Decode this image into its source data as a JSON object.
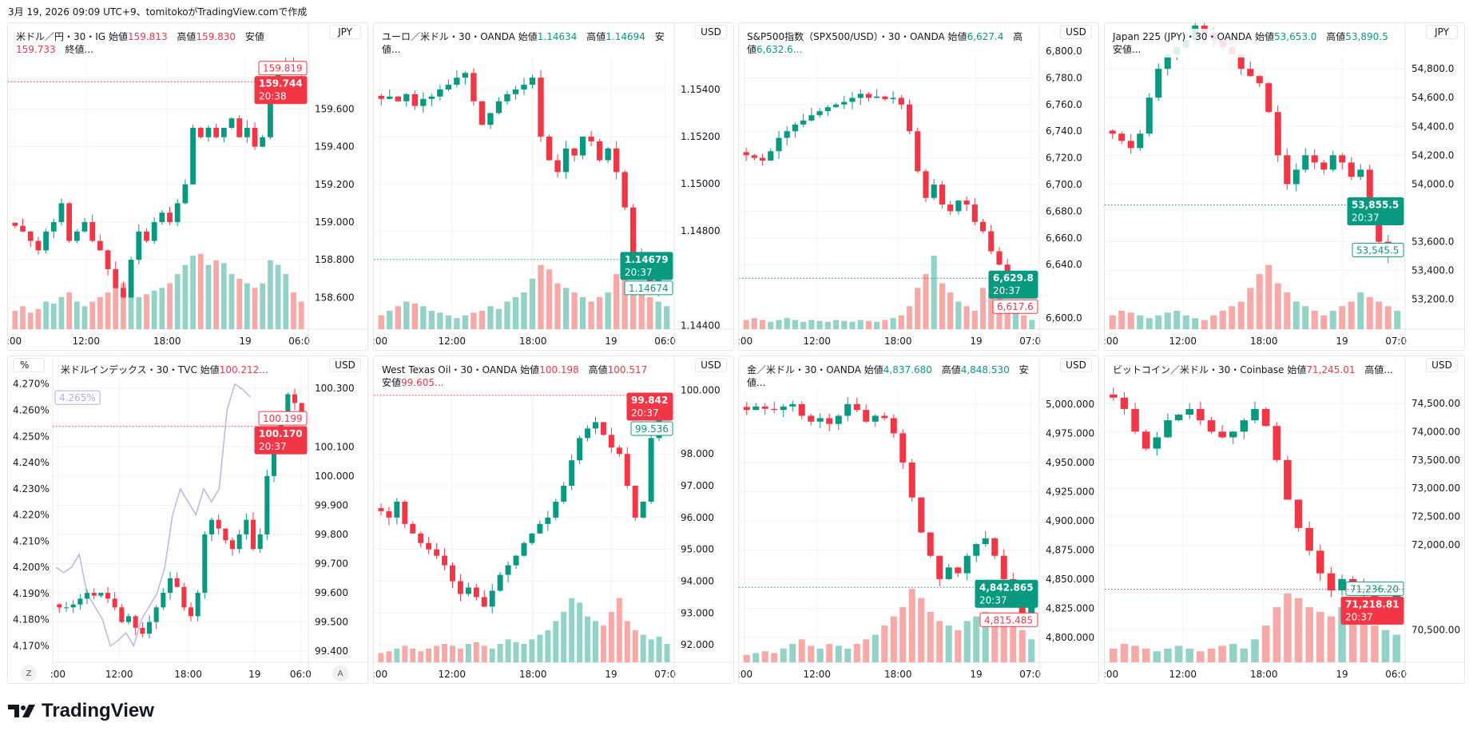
{
  "caption": "3月 19, 2026 09:09 UTC+9、tomitokoがTradingView.comで作成",
  "logo_text": "TradingView",
  "colors": {
    "up": "#089981",
    "down": "#f23645",
    "vol_up": "#92d2c7",
    "vol_down": "#f7a9a7",
    "yield_line": "#c5b6e6",
    "grid": "#f2f2f2"
  },
  "charts": [
    {
      "id": "usdjpy",
      "header": {
        "title": "米ドル／円・30・IG",
        "value_color": "#f23645",
        "fields": [
          {
            "k": "始値",
            "v": "159.813"
          },
          {
            "k": "高値",
            "v": "159.830"
          },
          {
            "k": "安値",
            "v": "159.733"
          },
          {
            "k": "終値...",
            "v": ""
          }
        ]
      },
      "currency": "JPY",
      "ylim": [
        158.432,
        160.055
      ],
      "decimals": 3,
      "yticks": [
        "159.600",
        "159.400",
        "159.200",
        "159.000",
        "158.800",
        "158.600"
      ],
      "xticks": [
        ":00",
        "12:00",
        "18:00",
        "19",
        "06:0"
      ],
      "closes": [
        158.98,
        158.95,
        158.9,
        158.85,
        158.95,
        159.0,
        159.1,
        158.9,
        158.95,
        159.0,
        158.9,
        158.85,
        158.75,
        158.65,
        158.6,
        158.8,
        158.95,
        158.9,
        159.0,
        159.05,
        159.0,
        159.1,
        159.2,
        159.5,
        159.45,
        159.5,
        159.45,
        159.5,
        159.55,
        159.45,
        159.5,
        159.4,
        159.45,
        159.7,
        159.8,
        159.85,
        159.8,
        159.78
      ],
      "volumes": [
        20,
        25,
        18,
        22,
        30,
        28,
        35,
        40,
        30,
        25,
        30,
        35,
        40,
        45,
        50,
        40,
        35,
        38,
        42,
        45,
        50,
        60,
        70,
        80,
        82,
        70,
        75,
        72,
        60,
        55,
        50,
        45,
        50,
        75,
        70,
        60,
        40,
        30
      ],
      "labels": [
        {
          "value": "159.819",
          "style": "outline",
          "color": "#f23645"
        },
        {
          "value": "159.744",
          "time": "20:38",
          "style": "filled",
          "color": "#f23645",
          "line": true
        }
      ]
    },
    {
      "id": "eurusd",
      "header": {
        "title": "ユーロ／米ドル・30・OANDA",
        "value_color": "#089981",
        "fields": [
          {
            "k": "始値",
            "v": "1.14634"
          },
          {
            "k": "高値",
            "v": "1.14694"
          },
          {
            "k": "安値...",
            "v": ""
          }
        ]
      },
      "currency": "USD",
      "ylim": [
        1.14384,
        1.15681
      ],
      "decimals": 5,
      "yticks": [
        "1.15400",
        "1.15200",
        "1.15000",
        "1.14800",
        "1.14400"
      ],
      "xticks": [
        ":00",
        "12:00",
        "18:00",
        "19",
        "06:0"
      ],
      "closes": [
        1.1536,
        1.1537,
        1.1535,
        1.1538,
        1.1533,
        1.1536,
        1.1537,
        1.154,
        1.1542,
        1.1545,
        1.1547,
        1.1535,
        1.1525,
        1.153,
        1.1535,
        1.1538,
        1.154,
        1.1542,
        1.1545,
        1.152,
        1.151,
        1.1505,
        1.1515,
        1.1512,
        1.152,
        1.1518,
        1.151,
        1.1515,
        1.1505,
        1.149,
        1.147,
        1.1465,
        1.1455,
        1.146,
        1.1468
      ],
      "volumes": [
        15,
        20,
        25,
        30,
        28,
        25,
        20,
        18,
        15,
        12,
        15,
        18,
        20,
        25,
        22,
        30,
        35,
        40,
        55,
        70,
        65,
        50,
        45,
        40,
        35,
        30,
        35,
        40,
        60,
        70,
        50,
        40,
        35,
        30,
        25
      ],
      "labels": [
        {
          "value": "1.14679",
          "time": "20:37",
          "style": "filled",
          "color": "#089981",
          "line": true
        },
        {
          "value": "1.14674",
          "style": "outline",
          "color": "#089981"
        }
      ]
    },
    {
      "id": "spx",
      "header": {
        "title": "S&P500指数（SPX500/USD）・30・OANDA",
        "value_color": "#089981",
        "fields": [
          {
            "k": "始値",
            "v": "6,627.4"
          },
          {
            "k": "高値",
            "v": "6,632.6..."
          }
        ]
      },
      "currency": "USD",
      "ylim": [
        6591.6,
        6821
      ],
      "decimals": 1,
      "yticks": [
        "6,800.0",
        "6,780.0",
        "6,760.0",
        "6,740.0",
        "6,720.0",
        "6,700.0",
        "6,680.0",
        "6,660.0",
        "6,640.0",
        "6,600.0"
      ],
      "xticks": [
        ":00",
        "12:00",
        "18:00",
        "19",
        "07:0"
      ],
      "closes": [
        6722,
        6720,
        6718,
        6725,
        6735,
        6740,
        6745,
        6748,
        6752,
        6755,
        6758,
        6760,
        6762,
        6765,
        6768,
        6765,
        6766,
        6764,
        6765,
        6760,
        6740,
        6710,
        6690,
        6700,
        6685,
        6680,
        6688,
        6685,
        6672,
        6665,
        6650,
        6640,
        6625,
        6630,
        6620,
        6627
      ],
      "volumes": [
        10,
        12,
        10,
        8,
        10,
        12,
        10,
        8,
        10,
        9,
        8,
        10,
        9,
        8,
        10,
        9,
        8,
        10,
        12,
        15,
        25,
        45,
        60,
        80,
        50,
        40,
        30,
        25,
        20,
        45,
        40,
        35,
        30,
        20,
        15,
        10
      ],
      "labels": [
        {
          "value": "6,629.8",
          "time": "20:37",
          "style": "filled",
          "color": "#089981",
          "line": true
        },
        {
          "value": "6,617.6",
          "style": "outline",
          "color": "#f23645"
        }
      ]
    },
    {
      "id": "jp225",
      "header": {
        "title": "Japan 225 (JPY)・30・OANDA",
        "value_color": "#089981",
        "fields": [
          {
            "k": "始値",
            "v": "53,653.0"
          },
          {
            "k": "高値",
            "v": "53,890.5"
          },
          {
            "k": "安値...",
            "v": ""
          }
        ]
      },
      "currency": "JPY",
      "ylim": [
        52993,
        55117
      ],
      "decimals": 1,
      "yticks": [
        "54,800.0",
        "54,600.0",
        "54,400.0",
        "54,200.0",
        "54,000.0",
        "53,600.0",
        "53,400.0",
        "53,200.0"
      ],
      "xticks": [
        ":00",
        "12:00",
        "18:00",
        "19",
        "07:0"
      ],
      "closes": [
        54350,
        54300,
        54250,
        54350,
        54600,
        54800,
        54900,
        54950,
        55000,
        55100,
        55050,
        55000,
        54950,
        54900,
        54800,
        54750,
        54700,
        54500,
        54200,
        54000,
        54100,
        54200,
        54150,
        54100,
        54200,
        54150,
        54050,
        54100,
        53800,
        53600,
        53500,
        53550
      ],
      "volumes": [
        15,
        20,
        18,
        15,
        12,
        15,
        18,
        20,
        15,
        12,
        10,
        15,
        20,
        25,
        30,
        45,
        60,
        70,
        50,
        40,
        30,
        25,
        20,
        15,
        20,
        25,
        30,
        40,
        35,
        30,
        25,
        20
      ],
      "labels": [
        {
          "value": "53,855.5",
          "time": "20:37",
          "style": "filled",
          "color": "#089981",
          "line": true
        },
        {
          "value": "53,545.5",
          "style": "outline",
          "color": "#089981"
        }
      ]
    },
    {
      "id": "dxy",
      "header": {
        "title": "米ドルインデックス・30・TVC",
        "value_color": "#f23645",
        "fields": [
          {
            "k": "始値",
            "v": "100.212..."
          }
        ]
      },
      "currency": "USD",
      "left_currency": "%",
      "ylim": [
        99.362,
        100.41
      ],
      "decimals": 3,
      "yticks": [
        "100.300",
        "100.100",
        "100.000",
        "99.900",
        "99.800",
        "99.700",
        "99.600",
        "99.500",
        "99.400"
      ],
      "left_ylim": [
        4.1637,
        4.2806
      ],
      "left_yticks": [
        "4.270%",
        "4.260%",
        "4.250%",
        "4.240%",
        "4.230%",
        "4.220%",
        "4.210%",
        "4.200%",
        "4.190%",
        "4.180%",
        "4.170%"
      ],
      "xticks": [
        ":00",
        "12:00",
        "18:00",
        "19",
        "06:0"
      ],
      "buttons": {
        "left": "Z",
        "right": "A"
      },
      "closes": [
        99.55,
        99.55,
        99.56,
        99.58,
        99.6,
        99.59,
        99.6,
        99.58,
        99.55,
        99.5,
        99.52,
        99.48,
        99.46,
        99.5,
        99.55,
        99.6,
        99.65,
        99.62,
        99.55,
        99.52,
        99.6,
        99.8,
        99.85,
        99.82,
        99.78,
        99.75,
        99.8,
        99.85,
        99.75,
        99.8,
        100.0,
        100.1,
        100.2,
        100.28,
        100.25,
        100.2
      ],
      "yield_line": [
        4.2,
        4.198,
        4.2,
        4.205,
        4.19,
        4.185,
        4.18,
        4.17,
        4.172,
        4.175,
        4.17,
        4.18,
        4.185,
        4.19,
        4.2,
        4.22,
        4.23,
        4.225,
        4.22,
        4.23,
        4.225,
        4.23,
        4.26,
        4.27,
        4.268,
        4.265
      ],
      "labels": [
        {
          "value": "100.199",
          "style": "outline",
          "color": "#f23645"
        },
        {
          "value": "100.170",
          "time": "20:37",
          "style": "filled",
          "color": "#f23645",
          "line": true
        }
      ],
      "left_labels": [
        {
          "value": "4.265%",
          "style": "outline",
          "color": "#b9a6e0"
        }
      ]
    },
    {
      "id": "wti",
      "header": {
        "title": "West Texas Oil・30・OANDA",
        "value_color": "#f23645",
        "fields": [
          {
            "k": "始値",
            "v": "100.198"
          },
          {
            "k": "高値",
            "v": "100.517"
          },
          {
            "k": "安値",
            "v": "99.605..."
          }
        ]
      },
      "currency": "USD",
      "ylim": [
        91.45,
        101.07
      ],
      "decimals": 3,
      "yticks": [
        "100.000",
        "98.000",
        "97.000",
        "96.000",
        "95.000",
        "94.000",
        "93.000",
        "92.000"
      ],
      "xticks": [
        ":00",
        "12:00",
        "18:00",
        "19",
        "07:0"
      ],
      "closes": [
        96.2,
        96.0,
        96.5,
        95.8,
        95.5,
        95.2,
        95.0,
        94.8,
        94.5,
        94.0,
        93.6,
        93.8,
        93.5,
        93.2,
        93.7,
        94.2,
        94.5,
        94.8,
        95.2,
        95.5,
        95.8,
        96.0,
        96.5,
        97.0,
        97.8,
        98.5,
        98.8,
        99.0,
        98.6,
        98.2,
        98.0,
        97.0,
        96.0,
        96.5,
        98.5,
        99.5,
        99.84
      ],
      "volumes": [
        10,
        12,
        15,
        18,
        15,
        12,
        15,
        18,
        20,
        18,
        15,
        20,
        22,
        18,
        15,
        20,
        25,
        22,
        20,
        25,
        30,
        35,
        45,
        55,
        70,
        65,
        50,
        45,
        40,
        55,
        70,
        45,
        35,
        30,
        25,
        28,
        20
      ],
      "labels": [
        {
          "value": "99.842",
          "time": "20:37",
          "style": "filled",
          "color": "#f23645",
          "line": true
        },
        {
          "value": "99.536",
          "style": "outline",
          "color": "#089981"
        }
      ]
    },
    {
      "id": "gold",
      "header": {
        "title": "金／米ドル・30・OANDA",
        "value_color": "#089981",
        "fields": [
          {
            "k": "始値",
            "v": "4,837.680"
          },
          {
            "k": "高値",
            "v": "4,848.530"
          },
          {
            "k": "安値...",
            "v": ""
          }
        ]
      },
      "currency": "USD",
      "ylim": [
        4778.7,
        5041
      ],
      "decimals": 3,
      "yticks": [
        "5,000.000",
        "4,975.000",
        "4,950.000",
        "4,925.000",
        "4,900.000",
        "4,875.000",
        "4,850.000",
        "4,825.000",
        "4,800.000"
      ],
      "xticks": [
        ":00",
        "12:00",
        "18:00",
        "19",
        "07:0"
      ],
      "closes": [
        4995,
        4998,
        4996,
        4995,
        4998,
        5000,
        4990,
        4985,
        4988,
        4983,
        4990,
        5000,
        4995,
        4985,
        4990,
        4988,
        4975,
        4950,
        4920,
        4890,
        4870,
        4850,
        4860,
        4855,
        4870,
        4880,
        4885,
        4870,
        4850,
        4830,
        4820,
        4843
      ],
      "volumes": [
        8,
        10,
        12,
        10,
        15,
        20,
        25,
        18,
        15,
        20,
        18,
        15,
        20,
        25,
        30,
        40,
        50,
        60,
        80,
        70,
        55,
        45,
        40,
        35,
        45,
        50,
        55,
        50,
        45,
        40,
        35,
        25
      ],
      "labels": [
        {
          "value": "4,842.865",
          "time": "20:37",
          "style": "filled",
          "color": "#089981",
          "line": true
        },
        {
          "value": "4,815.485",
          "style": "outline",
          "color": "#f23645"
        }
      ]
    },
    {
      "id": "btc",
      "header": {
        "title": "ビットコイン／米ドル・30・Coinbase",
        "value_color": "#f23645",
        "fields": [
          {
            "k": "始値",
            "v": "71,245.01"
          },
          {
            "k": "高値...",
            "v": ""
          }
        ]
      },
      "currency": "USD",
      "ylim": [
        69931,
        75329
      ],
      "decimals": 2,
      "yticks": [
        "74,500.00",
        "74,000.00",
        "73,500.00",
        "73,000.00",
        "72,500.00",
        "72,000.00",
        "70,500.00"
      ],
      "xticks": [
        ":00",
        "12:00",
        "18:00",
        "19",
        "06:0"
      ],
      "closes": [
        74600,
        74400,
        74000,
        73700,
        73900,
        74200,
        74300,
        74400,
        74200,
        74000,
        73900,
        74000,
        74200,
        74400,
        74100,
        73500,
        72800,
        72300,
        71900,
        71500,
        71200,
        71400,
        71300,
        71100,
        70900,
        71000,
        71219
      ],
      "volumes": [
        15,
        20,
        18,
        15,
        12,
        15,
        18,
        15,
        12,
        15,
        18,
        20,
        15,
        25,
        40,
        60,
        75,
        70,
        60,
        55,
        50,
        60,
        55,
        45,
        40,
        35,
        30
      ],
      "labels": [
        {
          "value": "71,236.20",
          "style": "outline",
          "color": "#089981"
        },
        {
          "value": "71,218.81",
          "time": "20:37",
          "style": "filled",
          "color": "#f23645",
          "line": true
        }
      ]
    }
  ]
}
